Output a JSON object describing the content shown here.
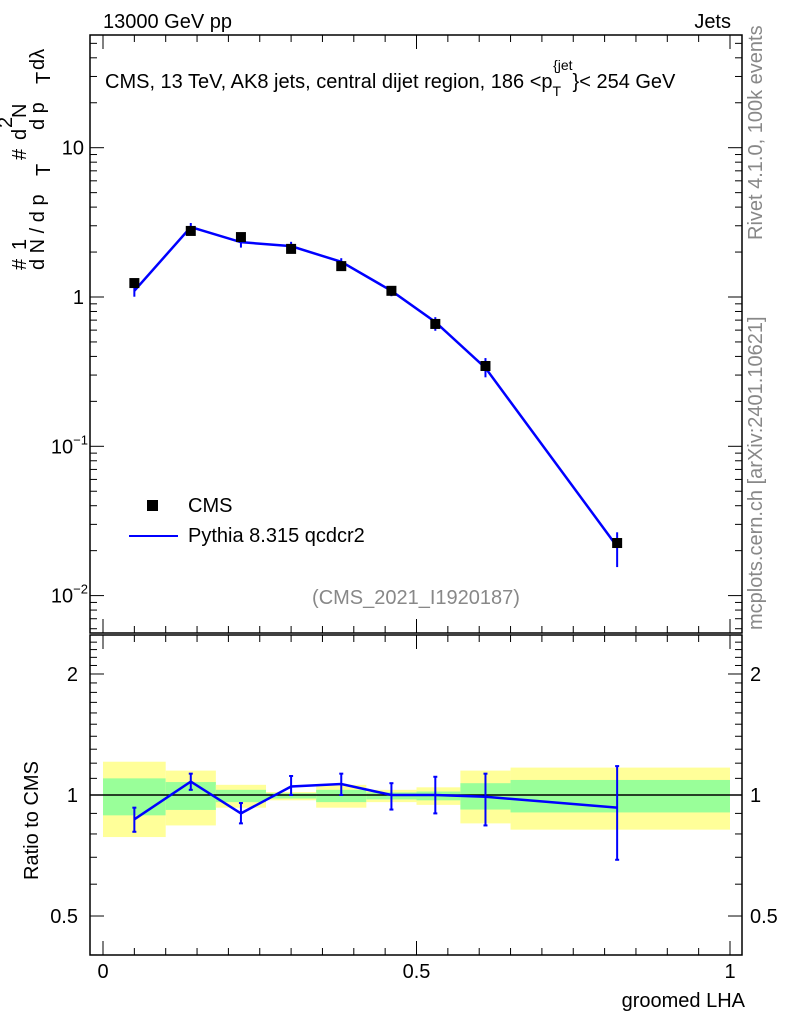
{
  "header": {
    "left": "13000 GeV pp",
    "right": "Jets"
  },
  "side": {
    "rivet": "Rivet 4.1.0,  100k events",
    "mcplots": "mcplots.cern.ch [arXiv:2401.10621]"
  },
  "colors": {
    "data": "#000000",
    "mc": "#0000ff",
    "band_outer": "#ffff99",
    "band_inner": "#99ff99"
  },
  "chart_data": [
    {
      "type": "scatter",
      "title": "CMS, 13 TeV, AK8 jets, central dijet region, 186 <p",
      "title_sub": "T",
      "title_sup": "{jet",
      "title_end": "}< 254 GeV",
      "ylabel_parts": [
        "#",
        "1",
        "d N / d p",
        "T",
        "#",
        "d",
        "2",
        "N",
        "d p",
        "T",
        "dλ"
      ],
      "yscale": "log",
      "ylim": [
        0.006,
        55
      ],
      "xlim": [
        -0.02,
        1.02
      ],
      "yticks": [
        {
          "v": 10,
          "l": "10"
        },
        {
          "v": 1,
          "l": "1"
        },
        {
          "v": 0.1,
          "l": "10",
          "e": "−1"
        },
        {
          "v": 0.01,
          "l": "10",
          "e": "−2"
        }
      ],
      "annotation": "(CMS_2021_I1920187)",
      "legend": {
        "position": "bottom-left",
        "entries": [
          "CMS",
          "Pythia 8.315 qcdcr2"
        ]
      },
      "x": [
        0.05,
        0.14,
        0.22,
        0.3,
        0.38,
        0.46,
        0.53,
        0.61,
        0.82
      ],
      "series": [
        {
          "name": "CMS",
          "values": [
            1.24,
            2.77,
            2.52,
            2.1,
            1.61,
            1.1,
            0.66,
            0.345,
            0.0225
          ]
        },
        {
          "name": "Pythia 8.315 qcdcr2",
          "values": [
            1.1,
            2.94,
            2.33,
            2.19,
            1.72,
            1.1,
            0.68,
            0.335,
            0.0213
          ]
        }
      ]
    },
    {
      "type": "line",
      "ylabel": "Ratio to CMS",
      "xlabel": "groomed LHA",
      "yscale": "log",
      "ylim": [
        0.4,
        2.5
      ],
      "yticks": [
        {
          "v": 2,
          "l": "2"
        },
        {
          "v": 1,
          "l": "1"
        },
        {
          "v": 0.5,
          "l": "0.5"
        }
      ],
      "xticks": [
        {
          "v": 0,
          "l": "0"
        },
        {
          "v": 0.5,
          "l": "0.5"
        },
        {
          "v": 1,
          "l": "1"
        }
      ],
      "bin_edges": [
        0,
        0.1,
        0.18,
        0.26,
        0.34,
        0.42,
        0.5,
        0.57,
        0.65,
        1.0
      ],
      "band_outer": [
        [
          0.786,
          1.21
        ],
        [
          0.84,
          1.15
        ],
        [
          0.93,
          1.06
        ],
        [
          0.97,
          1.017
        ],
        [
          0.93,
          1.06
        ],
        [
          0.96,
          1.03
        ],
        [
          0.945,
          1.045
        ],
        [
          0.85,
          1.15
        ],
        [
          0.82,
          1.17
        ]
      ],
      "band_inner": [
        [
          0.89,
          1.1
        ],
        [
          0.918,
          1.077
        ],
        [
          0.96,
          1.03
        ],
        [
          0.98,
          1.01
        ],
        [
          0.96,
          1.03
        ],
        [
          0.975,
          1.015
        ],
        [
          0.97,
          1.02
        ],
        [
          0.92,
          1.07
        ],
        [
          0.905,
          1.09
        ]
      ],
      "x": [
        0.05,
        0.14,
        0.22,
        0.3,
        0.38,
        0.46,
        0.53,
        0.61,
        0.82
      ],
      "ratio": [
        0.87,
        1.08,
        0.9,
        1.05,
        1.065,
        1.0,
        1.0,
        0.99,
        0.93
      ],
      "ratio_lo": [
        0.81,
        1.03,
        0.85,
        1.0,
        1.0,
        0.92,
        0.9,
        0.84,
        0.69
      ],
      "ratio_hi": [
        0.93,
        1.13,
        0.955,
        1.115,
        1.13,
        1.07,
        1.11,
        1.13,
        1.18
      ]
    }
  ]
}
